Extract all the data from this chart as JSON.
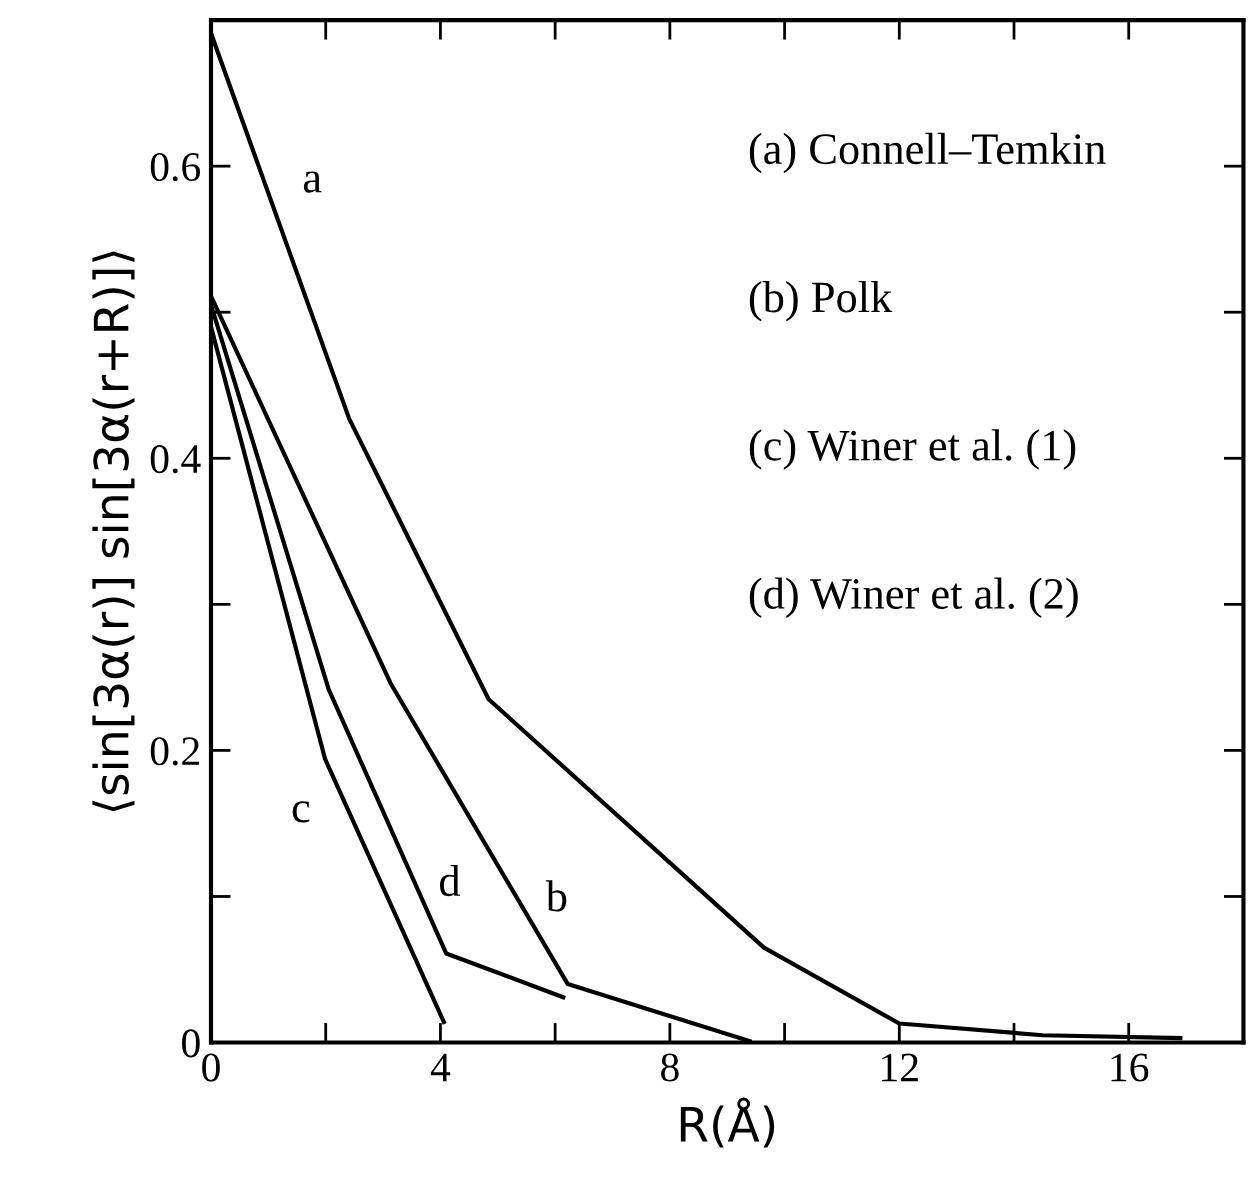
{
  "chart_data": {
    "type": "line",
    "xlabel": "R(Å)",
    "ylabel": "⟨sin[3α(r)] sin[3α(r+R)]⟩",
    "xlim": [
      0,
      18
    ],
    "ylim": [
      0,
      0.7
    ],
    "xticks": [
      0,
      {
        "value": 2,
        "label": null
      },
      4,
      {
        "value": 6,
        "label": null
      },
      8,
      {
        "value": 10,
        "label": null
      },
      12,
      {
        "value": 14,
        "label": null
      },
      16
    ],
    "yticks": [
      0,
      {
        "value": 0.1,
        "label": null
      },
      0.2,
      {
        "value": 0.3,
        "label": null
      },
      0.4,
      {
        "value": 0.5,
        "label": null
      },
      0.6
    ],
    "grid": false,
    "marker": "none",
    "line_style": "solid",
    "series": [
      {
        "color": "#000000",
        "x": [
          0,
          2.41,
          4.84,
          9.64,
          12.0,
          14.5,
          16.9
        ],
        "values": [
          0.691,
          0.427,
          0.235,
          0.065,
          0.013,
          0.005,
          0.003
        ]
      },
      {
        "color": "#000000",
        "x": [
          0,
          3.13,
          6.22,
          9.39
        ],
        "values": [
          0.511,
          0.246,
          0.04,
          0.001
        ]
      },
      {
        "color": "#000000",
        "x": [
          0,
          1.99,
          4.06
        ],
        "values": [
          0.49,
          0.194,
          0.014
        ]
      },
      {
        "color": "#000000",
        "x": [
          0,
          2.05,
          4.1,
          6.14
        ],
        "values": [
          0.505,
          0.242,
          0.061,
          0.031
        ]
      }
    ],
    "annotations": [
      "a",
      "b",
      "c",
      "d",
      "(a) Connell–Temkin",
      "(b) Polk",
      "(c) Winer et al. (1)",
      "(d) Winer et al. (2)"
    ]
  }
}
